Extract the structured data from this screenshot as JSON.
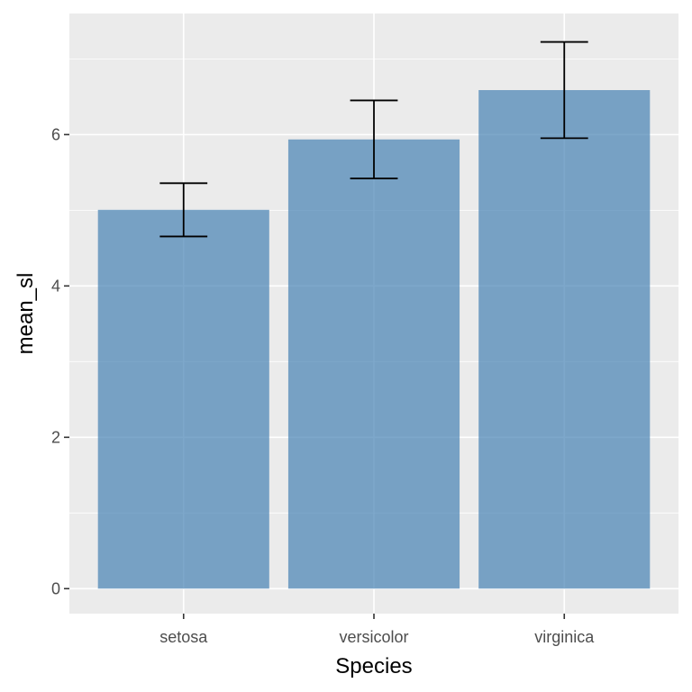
{
  "chart_data": {
    "type": "bar",
    "xlabel": "Species",
    "ylabel": "mean_sl",
    "categories": [
      "setosa",
      "versicolor",
      "virginica"
    ],
    "values": [
      5.006,
      5.936,
      6.588
    ],
    "error_bars": {
      "lower": [
        4.654,
        5.42,
        5.952
      ],
      "upper": [
        5.358,
        6.452,
        7.224
      ]
    },
    "ylim": [
      -0.33,
      7.6
    ],
    "yticks": [
      0,
      2,
      4,
      6
    ],
    "grid": true,
    "legend": "none",
    "colors": {
      "bar": "#4682b4",
      "bar_opacity": 0.7,
      "panel_background": "#ebebeb",
      "grid": "#ffffff",
      "error_bar": "#000000"
    }
  }
}
